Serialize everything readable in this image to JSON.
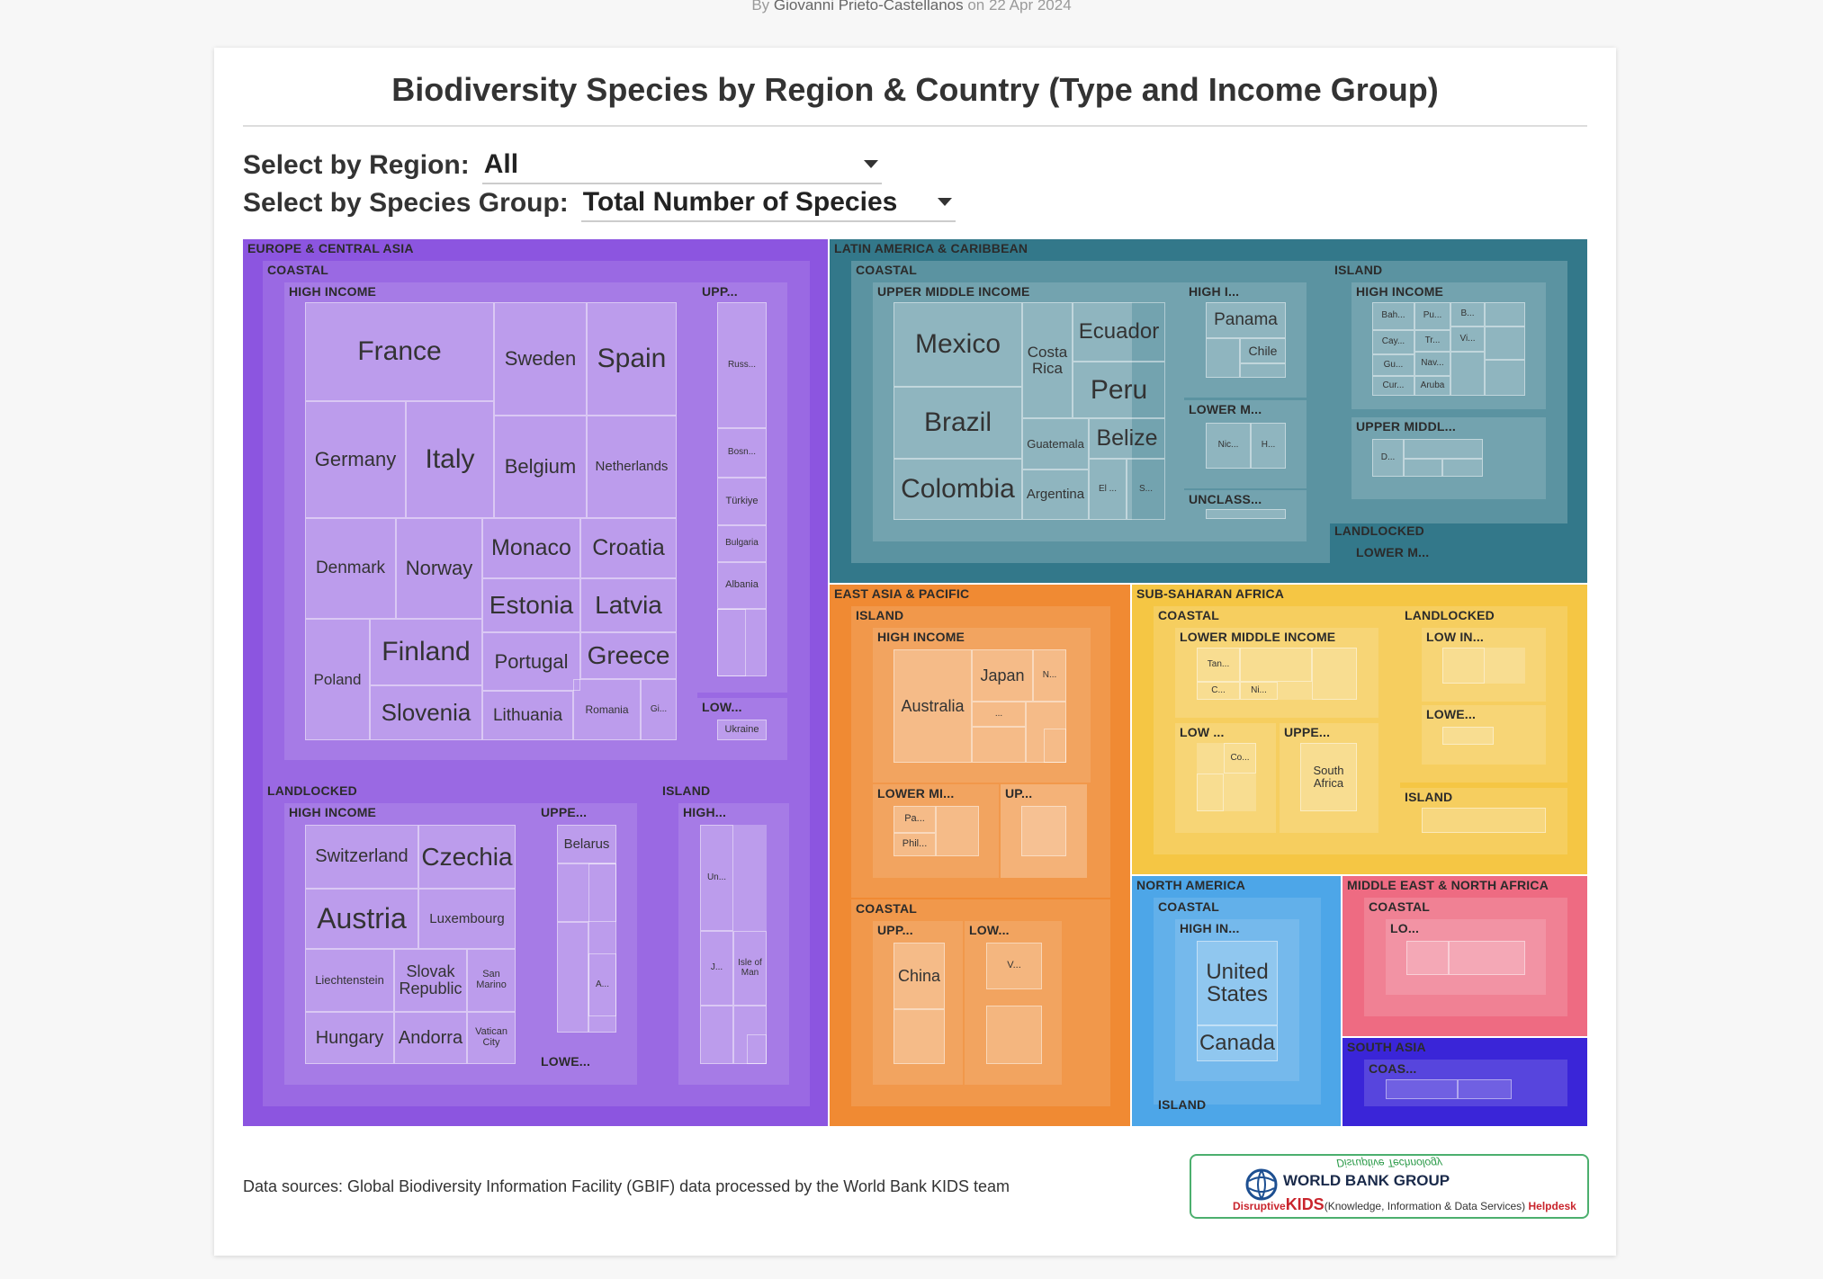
{
  "byline": {
    "prefix": "By",
    "author": "Giovanni Prieto-Castellanos",
    "date_text": "on 22 Apr 2024"
  },
  "title": "Biodiversity Species by Region & Country (Type and Income Group)",
  "filters": {
    "region": {
      "label": "Select by Region:",
      "value": "All"
    },
    "species_group": {
      "label": "Select by Species Group:",
      "value": "Total Number of Species"
    }
  },
  "source_text": "Data sources: Global Biodiversity Information Facility (GBIF) data processed by the World Bank KIDS team",
  "logo": {
    "tagline": "Disruptive Technology",
    "org": "WORLD BANK GROUP",
    "sub_prefix": "Disruptive",
    "sub_kids": "KIDS",
    "sub_middle": "(Knowledge, Information & Data Services)",
    "sub_suffix": "Helpdesk"
  },
  "colors": {
    "europe_central_asia": "#8c55e0",
    "latin_america_caribbean": "#33788a",
    "east_asia_pacific": "#f08a33",
    "sub_saharan_africa": "#f5c644",
    "north_america": "#4da6e8",
    "middle_east_north_africa": "#ee6b82",
    "south_asia": "#3a25d8"
  },
  "chart_data": {
    "type": "treemap",
    "title": "Biodiversity Species by Region & Country (Type and Income Group)",
    "hierarchy": [
      "Region",
      "Type",
      "Income Group",
      "Country"
    ],
    "regions": [
      {
        "name": "EUROPE & CENTRAL ASIA",
        "color_key": "europe_central_asia"
      },
      {
        "name": "LATIN AMERICA & CARIBBEAN",
        "color_key": "latin_america_caribbean"
      },
      {
        "name": "EAST ASIA & PACIFIC",
        "color_key": "east_asia_pacific"
      },
      {
        "name": "SUB-SAHARAN AFRICA",
        "color_key": "sub_saharan_africa"
      },
      {
        "name": "NORTH AMERICA",
        "color_key": "north_america"
      },
      {
        "name": "MIDDLE EAST & NORTH AFRICA",
        "color_key": "middle_east_north_africa"
      },
      {
        "name": "SOUTH ASIA",
        "color_key": "south_asia"
      }
    ],
    "labels": {
      "eca": "EUROPE & CENTRAL ASIA",
      "eca_coastal": "COASTAL",
      "eca_coastal_hi": "HIGH INCOME",
      "eca_coastal_upp": "UPP...",
      "eca_coastal_low": "LOW...",
      "eca_land": "LANDLOCKED",
      "eca_land_hi": "HIGH INCOME",
      "eca_land_uppe": "UPPE...",
      "eca_land_lowe": "LOWE...",
      "eca_island": "ISLAND",
      "eca_island_high": "HIGH...",
      "lac": "LATIN AMERICA & CARIBBEAN",
      "lac_coastal": "COASTAL",
      "lac_coastal_umi": "UPPER MIDDLE INCOME",
      "lac_coastal_hi": "HIGH I...",
      "lac_coastal_lm": "LOWER M...",
      "lac_coastal_uncl": "UNCLASS...",
      "lac_island": "ISLAND",
      "lac_island_hi": "HIGH INCOME",
      "lac_island_um": "UPPER MIDDL...",
      "lac_land": "LANDLOCKED",
      "lac_land_lm": "LOWER M...",
      "eap": "EAST ASIA & PACIFIC",
      "eap_island": "ISLAND",
      "eap_island_hi": "HIGH INCOME",
      "eap_island_lm": "LOWER MI...",
      "eap_island_up": "UP...",
      "eap_coastal": "COASTAL",
      "eap_coastal_upp": "UPP...",
      "eap_coastal_low": "LOW...",
      "ssa": "SUB-SAHARAN AFRICA",
      "ssa_coastal": "COASTAL",
      "ssa_coastal_lmi": "LOWER MIDDLE INCOME",
      "ssa_coastal_low": "LOW ...",
      "ssa_coastal_uppe": "UPPE...",
      "ssa_land": "LANDLOCKED",
      "ssa_land_low": "LOW IN...",
      "ssa_land_lowe": "LOWE...",
      "ssa_island": "ISLAND",
      "na": "NORTH AMERICA",
      "na_coastal": "COASTAL",
      "na_coastal_hi": "HIGH IN...",
      "na_island": "ISLAND",
      "mena": "MIDDLE EAST & NORTH AFRICA",
      "mena_coastal": "COASTAL",
      "mena_coastal_lo": "LO...",
      "sa": "SOUTH ASIA",
      "sa_coas": "COAS..."
    },
    "countries": {
      "france": "France",
      "sweden": "Sweden",
      "spain": "Spain",
      "germany": "Germany",
      "italy": "Italy",
      "belgium": "Belgium",
      "netherlands": "Netherlands",
      "denmark": "Denmark",
      "norway": "Norway",
      "monaco": "Monaco",
      "croatia": "Croatia",
      "estonia": "Estonia",
      "latvia": "Latvia",
      "poland": "Poland",
      "finland": "Finland",
      "portugal": "Portugal",
      "greece": "Greece",
      "slovenia": "Slovenia",
      "lithuania": "Lithuania",
      "romania": "Romania",
      "gi": "Gi...",
      "russ": "Russ...",
      "bosn": "Bosn...",
      "turkiye": "Türkiye",
      "bulgaria": "Bulgaria",
      "albania": "Albania",
      "ukraine": "Ukraine",
      "switzerland": "Switzerland",
      "czechia": "Czechia",
      "austria": "Austria",
      "luxembourg": "Luxembourg",
      "liechtenstein": "Liechtenstein",
      "slovak": "Slovak Republic",
      "san_marino": "San Marino",
      "hungary": "Hungary",
      "andorra": "Andorra",
      "vatican": "Vatican City",
      "belarus": "Belarus",
      "a_dots": "A...",
      "un": "Un...",
      "j": "J...",
      "isle_of_man": "Isle of Man",
      "mexico": "Mexico",
      "costa_rica": "Costa Rica",
      "ecuador": "Ecuador",
      "peru": "Peru",
      "brazil": "Brazil",
      "guatemala": "Guatemala",
      "belize": "Belize",
      "colombia": "Colombia",
      "argentina": "Argentina",
      "el": "El ...",
      "s_dots": "S...",
      "panama": "Panama",
      "chile": "Chile",
      "nic": "Nic...",
      "h_dots": "H...",
      "bah": "Bah...",
      "pu": "Pu...",
      "b_dots": "B...",
      "cay": "Cay...",
      "tr": "Tr...",
      "vi": "Vi...",
      "gu": "Gu...",
      "nav": "Nav...",
      "cur": "Cur...",
      "aruba": "Aruba",
      "d_dots": "D...",
      "japan": "Japan",
      "n_dots": "N...",
      "australia": "Australia",
      "dots": "...",
      "pa": "Pa...",
      "phil": "Phil...",
      "china": "China",
      "v_dots": "V...",
      "tan": "Tan...",
      "c_dots": "C...",
      "ni": "Ni...",
      "co": "Co...",
      "south_africa": "South Africa",
      "united_states": "United States",
      "canada": "Canada"
    }
  }
}
